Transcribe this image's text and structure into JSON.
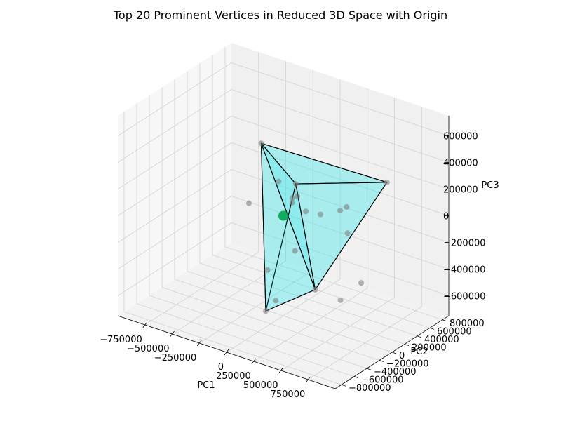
{
  "chart_data": {
    "type": "scatter",
    "projection": "3d",
    "title": "Top 20 Prominent Vertices in Reduced 3D Space with Origin",
    "xlabel": "PC1",
    "ylabel": "PC2",
    "zlabel": "PC3",
    "xlim": [
      -1000000,
      1000000
    ],
    "ylim": [
      -900000,
      900000
    ],
    "zlim": [
      -750000,
      750000
    ],
    "x_ticks": [
      -750000,
      -500000,
      -250000,
      0,
      250000,
      500000,
      750000
    ],
    "x_tick_labels": [
      "−750000",
      "−500000",
      "−250000",
      "0",
      "250000",
      "500000",
      "750000"
    ],
    "y_ticks": [
      -800000,
      -600000,
      -400000,
      -200000,
      0,
      200000,
      400000,
      600000,
      800000
    ],
    "y_tick_labels": [
      "−800000",
      "−600000",
      "−400000",
      "−200000",
      "0",
      "200000",
      "400000",
      "600000",
      "800000"
    ],
    "z_ticks": [
      -600000,
      -400000,
      -200000,
      0,
      200000,
      400000,
      600000
    ],
    "z_tick_labels": [
      "−600000",
      "−400000",
      "−200000",
      "0",
      "200000",
      "400000",
      "600000"
    ],
    "grid": true,
    "hull_face_color": "#00e5ee",
    "hull_edge_color": "#000000",
    "point_color": "#808080",
    "origin_color": "#00a550",
    "points": [
      {
        "x": 0,
        "y": -350000,
        "z": 650000
      },
      {
        "x": -350000,
        "y": 800000,
        "z": -100000
      },
      {
        "x": 700000,
        "y": -700000,
        "z": -150000
      },
      {
        "x": 100000,
        "y": -450000,
        "z": -550000
      },
      {
        "x": 750000,
        "y": 350000,
        "z": 350000
      },
      {
        "x": -250000,
        "y": 650000,
        "z": -120000
      },
      {
        "x": -150000,
        "y": 400000,
        "z": -30000
      },
      {
        "x": -120000,
        "y": 350000,
        "z": -40000
      },
      {
        "x": 120000,
        "y": 150000,
        "z": 20000
      },
      {
        "x": 320000,
        "y": 350000,
        "z": 20000
      },
      {
        "x": 350000,
        "y": 400000,
        "z": 40000
      },
      {
        "x": 0,
        "y": -250000,
        "z": -330000
      },
      {
        "x": 250000,
        "y": -550000,
        "z": -400000
      },
      {
        "x": 700000,
        "y": -300000,
        "z": -350000
      },
      {
        "x": 600000,
        "y": 200000,
        "z": -400000
      },
      {
        "x": 50000,
        "y": 100000,
        "z": -280000
      },
      {
        "x": -100000,
        "y": 100000,
        "z": 200000
      },
      {
        "x": 400000,
        "y": -100000,
        "z": 150000
      },
      {
        "x": -200000,
        "y": -200000,
        "z": 100000
      },
      {
        "x": 300000,
        "y": 500000,
        "z": -200000
      }
    ],
    "origin": {
      "x": 0,
      "y": 0,
      "z": 0
    },
    "hull_faces": [
      [
        0,
        1,
        2
      ],
      [
        0,
        2,
        4
      ],
      [
        0,
        1,
        4
      ],
      [
        1,
        2,
        4
      ],
      [
        1,
        3,
        2
      ],
      [
        0,
        1,
        3
      ],
      [
        0,
        3,
        2
      ]
    ]
  }
}
